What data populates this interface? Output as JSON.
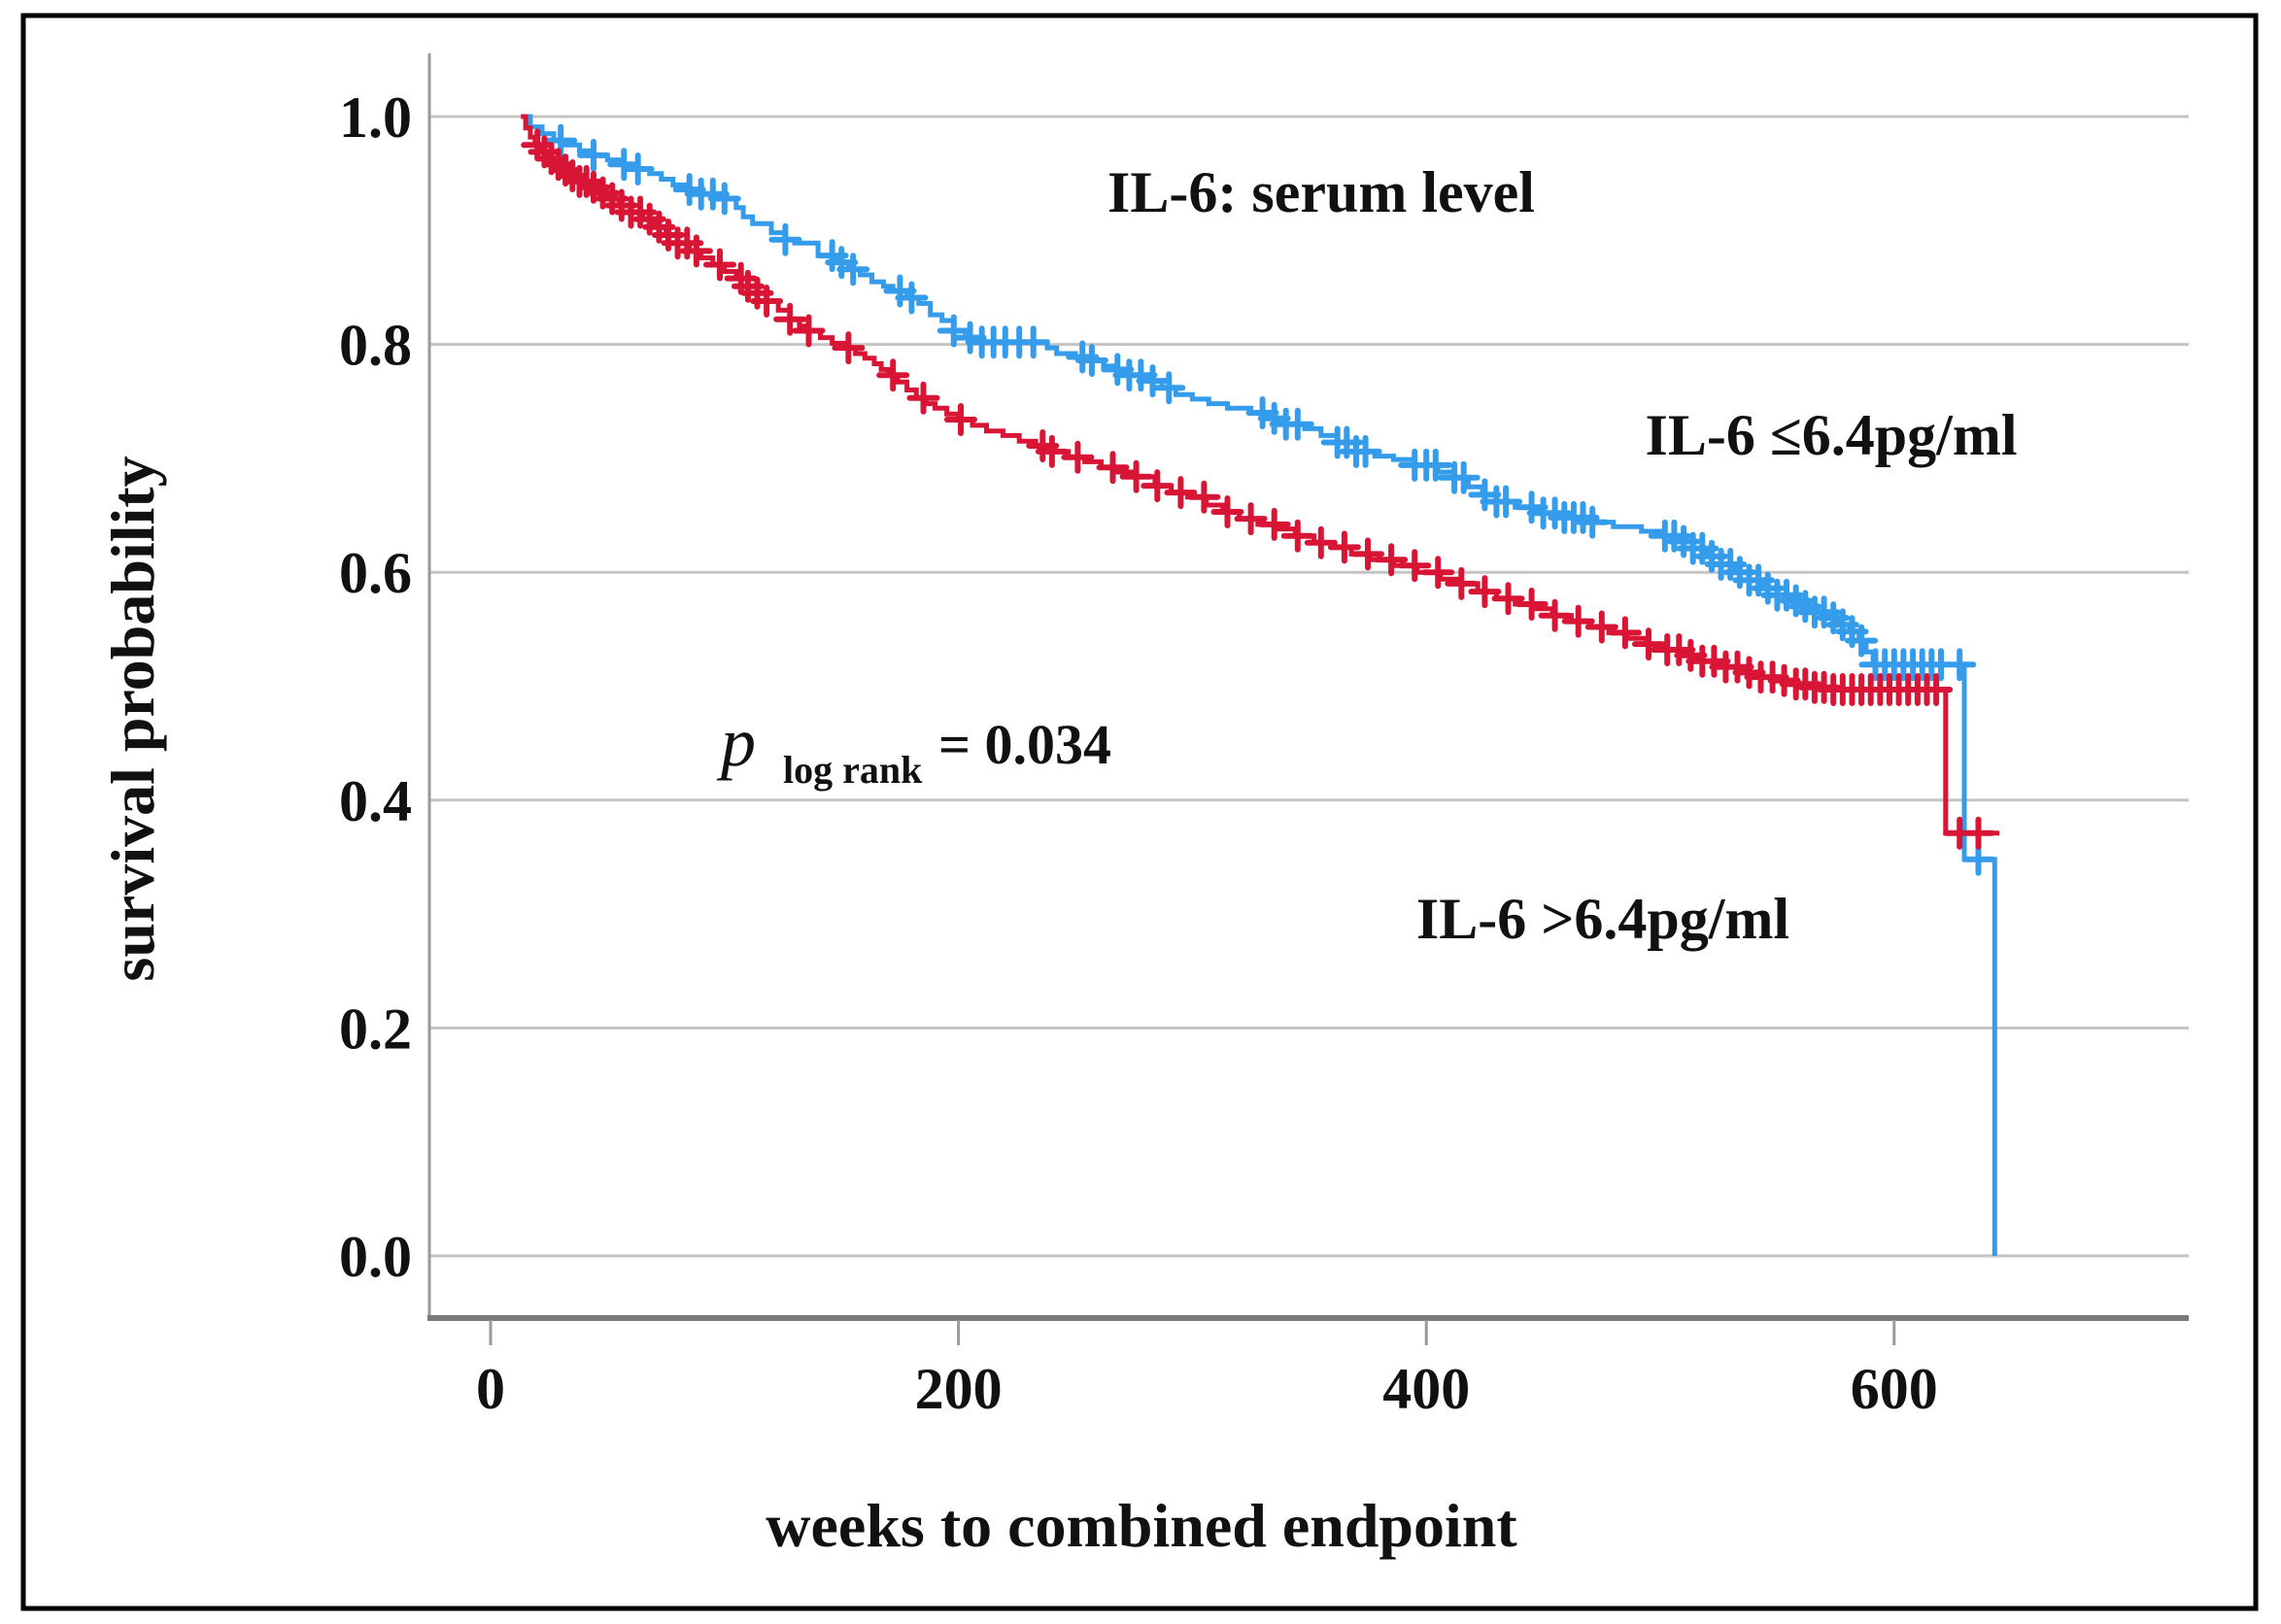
{
  "figure": {
    "title": "IL-6: serum level",
    "x_axis_label": "weeks to combined endpoint",
    "y_axis_label": "survival probability",
    "p_value": {
      "symbol": "p",
      "subscript": "log rank",
      "value": "= 0.034"
    },
    "legend": {
      "blue": "IL-6 ≤6.4pg/ml",
      "red": "IL-6 >6.4pg/ml"
    },
    "colors": {
      "blue_curve": "#359CEC",
      "blue_text": "#3B96EA",
      "red_curve": "#D81535",
      "red_text": "#ED1111",
      "gridline": "#C4C4C4",
      "y_axis": "#9A9A9A",
      "x_axis": "#7A7A7A",
      "border": "#000000"
    }
  },
  "chart_data": {
    "type": "line",
    "subtype": "kaplan-meier-step",
    "title": "IL-6: serum level",
    "xlabel": "weeks to combined endpoint",
    "ylabel": "survival probability",
    "xlim": [
      -26,
      724
    ],
    "ylim": [
      0,
      1.05
    ],
    "xticks": [
      0,
      200,
      400,
      600
    ],
    "yticks": [
      1.0,
      0.8,
      0.6,
      0.4,
      0.2,
      0.0
    ],
    "ytick_labels": [
      "1.0",
      "0.8",
      "0.6",
      "0.4",
      "0.2",
      "0.0"
    ],
    "grid": "horizontal",
    "legend_position": "inline-labels",
    "p_log_rank": 0.034,
    "series": [
      {
        "name": "IL-6 ≤6.4pg/ml",
        "color": "#359CEC",
        "steps": [
          [
            13,
            1.0
          ],
          [
            17,
            0.991
          ],
          [
            22,
            0.985
          ],
          [
            27,
            0.979
          ],
          [
            32,
            0.975
          ],
          [
            38,
            0.97
          ],
          [
            44,
            0.966
          ],
          [
            50,
            0.962
          ],
          [
            57,
            0.958
          ],
          [
            63,
            0.954
          ],
          [
            68,
            0.95
          ],
          [
            73,
            0.945
          ],
          [
            78,
            0.94
          ],
          [
            83,
            0.936
          ],
          [
            90,
            0.932
          ],
          [
            100,
            0.928
          ],
          [
            105,
            0.92
          ],
          [
            108,
            0.912
          ],
          [
            112,
            0.906
          ],
          [
            120,
            0.898
          ],
          [
            126,
            0.892
          ],
          [
            130,
            0.889
          ],
          [
            140,
            0.878
          ],
          [
            148,
            0.872
          ],
          [
            153,
            0.866
          ],
          [
            158,
            0.861
          ],
          [
            163,
            0.855
          ],
          [
            168,
            0.851
          ],
          [
            172,
            0.847
          ],
          [
            178,
            0.841
          ],
          [
            183,
            0.836
          ],
          [
            188,
            0.826
          ],
          [
            193,
            0.821
          ],
          [
            198,
            0.812
          ],
          [
            203,
            0.806
          ],
          [
            210,
            0.802
          ],
          [
            238,
            0.797
          ],
          [
            242,
            0.792
          ],
          [
            250,
            0.789
          ],
          [
            257,
            0.786
          ],
          [
            262,
            0.781
          ],
          [
            268,
            0.778
          ],
          [
            273,
            0.773
          ],
          [
            280,
            0.768
          ],
          [
            287,
            0.762
          ],
          [
            293,
            0.756
          ],
          [
            300,
            0.752
          ],
          [
            307,
            0.748
          ],
          [
            315,
            0.744
          ],
          [
            325,
            0.74
          ],
          [
            332,
            0.735
          ],
          [
            340,
            0.73
          ],
          [
            348,
            0.726
          ],
          [
            355,
            0.72
          ],
          [
            362,
            0.714
          ],
          [
            370,
            0.706
          ],
          [
            378,
            0.702
          ],
          [
            386,
            0.699
          ],
          [
            395,
            0.694
          ],
          [
            405,
            0.688
          ],
          [
            412,
            0.683
          ],
          [
            418,
            0.675
          ],
          [
            424,
            0.668
          ],
          [
            430,
            0.662
          ],
          [
            438,
            0.657
          ],
          [
            447,
            0.652
          ],
          [
            456,
            0.648
          ],
          [
            468,
            0.644
          ],
          [
            480,
            0.64
          ],
          [
            492,
            0.636
          ],
          [
            500,
            0.632
          ],
          [
            508,
            0.627
          ],
          [
            514,
            0.621
          ],
          [
            520,
            0.614
          ],
          [
            526,
            0.607
          ],
          [
            532,
            0.6
          ],
          [
            538,
            0.593
          ],
          [
            544,
            0.586
          ],
          [
            550,
            0.58
          ],
          [
            556,
            0.575
          ],
          [
            561,
            0.57
          ],
          [
            566,
            0.565
          ],
          [
            571,
            0.56
          ],
          [
            576,
            0.554
          ],
          [
            581,
            0.548
          ],
          [
            585,
            0.54
          ],
          [
            588,
            0.53
          ],
          [
            591,
            0.519
          ],
          [
            630,
            0.348
          ],
          [
            643,
            0.0
          ]
        ],
        "censor_times": [
          30,
          44,
          57,
          63,
          85,
          90,
          95,
          100,
          126,
          146,
          150,
          155,
          175,
          180,
          198,
          205,
          210,
          215,
          220,
          226,
          232,
          253,
          257,
          268,
          273,
          278,
          283,
          290,
          330,
          335,
          340,
          345,
          362,
          366,
          370,
          374,
          395,
          400,
          404,
          412,
          416,
          425,
          430,
          434,
          445,
          450,
          455,
          459,
          463,
          467,
          471,
          502,
          506,
          510,
          514,
          518,
          522,
          526,
          530,
          534,
          538,
          542,
          546,
          550,
          554,
          558,
          562,
          566,
          570,
          574,
          578,
          582,
          586,
          592,
          596,
          600,
          604,
          608,
          612,
          616,
          620,
          628,
          636
        ]
      },
      {
        "name": "IL-6 >6.4pg/ml",
        "color": "#D81535",
        "steps": [
          [
            13,
            1.0
          ],
          [
            15,
            0.99
          ],
          [
            17,
            0.982
          ],
          [
            19,
            0.975
          ],
          [
            21,
            0.969
          ],
          [
            24,
            0.963
          ],
          [
            27,
            0.958
          ],
          [
            30,
            0.953
          ],
          [
            34,
            0.948
          ],
          [
            38,
            0.943
          ],
          [
            42,
            0.938
          ],
          [
            46,
            0.933
          ],
          [
            50,
            0.928
          ],
          [
            55,
            0.922
          ],
          [
            60,
            0.916
          ],
          [
            65,
            0.91
          ],
          [
            70,
            0.903
          ],
          [
            75,
            0.896
          ],
          [
            80,
            0.889
          ],
          [
            85,
            0.882
          ],
          [
            90,
            0.876
          ],
          [
            95,
            0.87
          ],
          [
            100,
            0.864
          ],
          [
            105,
            0.858
          ],
          [
            110,
            0.851
          ],
          [
            114,
            0.845
          ],
          [
            118,
            0.838
          ],
          [
            123,
            0.83
          ],
          [
            128,
            0.822
          ],
          [
            132,
            0.816
          ],
          [
            136,
            0.812
          ],
          [
            141,
            0.806
          ],
          [
            146,
            0.801
          ],
          [
            151,
            0.797
          ],
          [
            156,
            0.792
          ],
          [
            160,
            0.788
          ],
          [
            164,
            0.783
          ],
          [
            167,
            0.778
          ],
          [
            170,
            0.773
          ],
          [
            174,
            0.767
          ],
          [
            178,
            0.76
          ],
          [
            182,
            0.753
          ],
          [
            186,
            0.748
          ],
          [
            190,
            0.744
          ],
          [
            195,
            0.739
          ],
          [
            200,
            0.734
          ],
          [
            206,
            0.729
          ],
          [
            212,
            0.724
          ],
          [
            219,
            0.72
          ],
          [
            226,
            0.715
          ],
          [
            233,
            0.711
          ],
          [
            240,
            0.706
          ],
          [
            247,
            0.701
          ],
          [
            254,
            0.697
          ],
          [
            261,
            0.692
          ],
          [
            268,
            0.688
          ],
          [
            276,
            0.684
          ],
          [
            284,
            0.676
          ],
          [
            291,
            0.67
          ],
          [
            298,
            0.666
          ],
          [
            306,
            0.659
          ],
          [
            313,
            0.653
          ],
          [
            320,
            0.647
          ],
          [
            328,
            0.642
          ],
          [
            336,
            0.638
          ],
          [
            344,
            0.632
          ],
          [
            352,
            0.626
          ],
          [
            360,
            0.622
          ],
          [
            368,
            0.616
          ],
          [
            376,
            0.611
          ],
          [
            386,
            0.606
          ],
          [
            396,
            0.6
          ],
          [
            406,
            0.594
          ],
          [
            414,
            0.59
          ],
          [
            422,
            0.583
          ],
          [
            430,
            0.577
          ],
          [
            438,
            0.572
          ],
          [
            446,
            0.568
          ],
          [
            454,
            0.562
          ],
          [
            462,
            0.557
          ],
          [
            470,
            0.552
          ],
          [
            478,
            0.547
          ],
          [
            486,
            0.542
          ],
          [
            494,
            0.537
          ],
          [
            502,
            0.532
          ],
          [
            510,
            0.527
          ],
          [
            518,
            0.522
          ],
          [
            526,
            0.517
          ],
          [
            534,
            0.512
          ],
          [
            542,
            0.508
          ],
          [
            550,
            0.505
          ],
          [
            558,
            0.502
          ],
          [
            566,
            0.499
          ],
          [
            574,
            0.497
          ],
          [
            622,
            0.371
          ],
          [
            645,
            0.371
          ]
        ],
        "censor_times": [
          20,
          23,
          26,
          29,
          32,
          35,
          38,
          41,
          44,
          48,
          52,
          56,
          60,
          64,
          68,
          72,
          76,
          80,
          84,
          88,
          98,
          107,
          110,
          114,
          118,
          128,
          136,
          153,
          172,
          185,
          201,
          236,
          240,
          251,
          266,
          276,
          285,
          295,
          305,
          315,
          325,
          335,
          345,
          355,
          365,
          375,
          385,
          395,
          405,
          415,
          425,
          435,
          445,
          455,
          465,
          475,
          485,
          495,
          503,
          508,
          513,
          518,
          523,
          528,
          533,
          538,
          543,
          548,
          553,
          558,
          562,
          566,
          570,
          574,
          578,
          582,
          586,
          590,
          594,
          598,
          602,
          606,
          610,
          614,
          618,
          628,
          636
        ]
      }
    ]
  }
}
